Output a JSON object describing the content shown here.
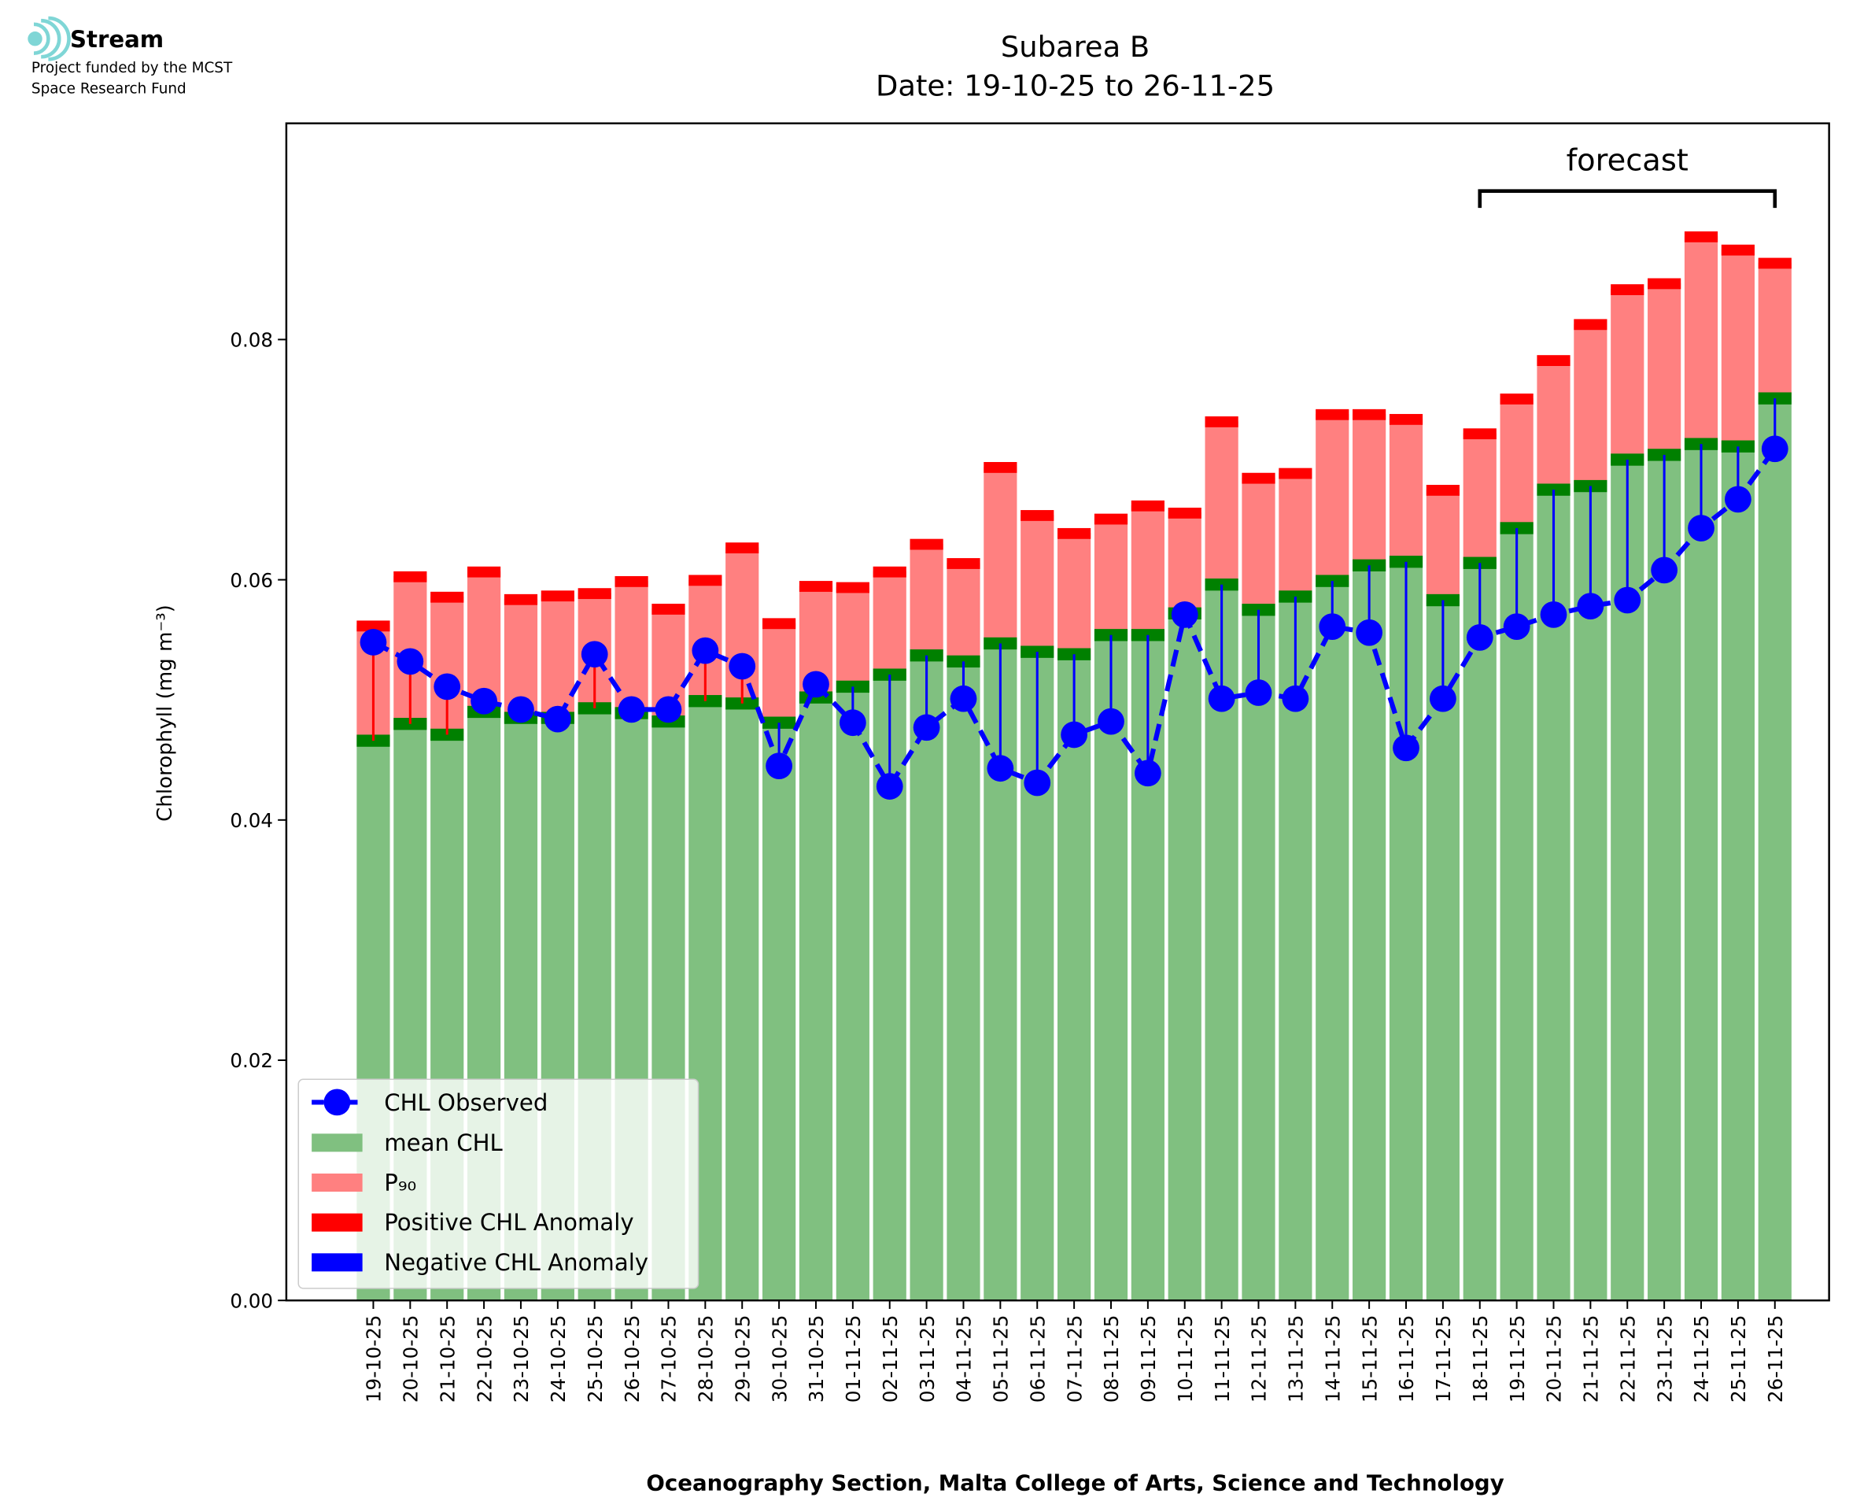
{
  "logo": {
    "name": "Stream",
    "line1": "Project funded by the MCST",
    "line2": "Space Research Fund"
  },
  "chart_data": {
    "type": "bar",
    "title": "Subarea B",
    "subtitle": "Date: 19-10-25 to 26-11-25",
    "xlabel": "Oceanography Section, Malta College of Arts, Science and Technology",
    "ylabel": "Chlorophyll (mg m⁻³)",
    "annotation": "forecast",
    "categories": [
      "19-10-25",
      "20-10-25",
      "21-10-25",
      "22-10-25",
      "23-10-25",
      "24-10-25",
      "25-10-25",
      "26-10-25",
      "27-10-25",
      "28-10-25",
      "29-10-25",
      "30-10-25",
      "31-10-25",
      "01-11-25",
      "02-11-25",
      "03-11-25",
      "04-11-25",
      "05-11-25",
      "06-11-25",
      "07-11-25",
      "08-11-25",
      "09-11-25",
      "10-11-25",
      "11-11-25",
      "12-11-25",
      "13-11-25",
      "14-11-25",
      "15-11-25",
      "16-11-25",
      "17-11-25",
      "18-11-25",
      "19-11-25",
      "20-11-25",
      "21-11-25",
      "22-11-25",
      "23-11-25",
      "24-11-25",
      "25-11-25",
      "26-11-25"
    ],
    "series": [
      {
        "name": "CHL Observed",
        "color": "#0000ff",
        "values": [
          0.0548,
          0.0532,
          0.0511,
          0.0499,
          0.0492,
          0.0484,
          0.0538,
          0.0492,
          0.0492,
          0.0541,
          0.0528,
          0.0445,
          0.0513,
          0.0481,
          0.0428,
          0.0477,
          0.0501,
          0.0443,
          0.0431,
          0.0471,
          0.0482,
          0.0439,
          0.0571,
          0.0501,
          0.0506,
          0.0501,
          0.0561,
          0.0556,
          0.046,
          0.0501,
          0.0552,
          0.0561,
          0.0571,
          0.0578,
          0.0583,
          0.0608,
          0.0643,
          0.0667,
          0.0709
        ]
      },
      {
        "name": "mean CHL",
        "color": "#80c080",
        "values": [
          0.0466,
          0.048,
          0.0471,
          0.049,
          0.0485,
          0.0485,
          0.0493,
          0.0489,
          0.0482,
          0.0499,
          0.0497,
          0.0481,
          0.0502,
          0.0511,
          0.0521,
          0.0537,
          0.0532,
          0.0547,
          0.054,
          0.0538,
          0.0554,
          0.0554,
          0.0572,
          0.0596,
          0.0575,
          0.0586,
          0.0599,
          0.0612,
          0.0615,
          0.0583,
          0.0614,
          0.0643,
          0.0675,
          0.0678,
          0.07,
          0.0704,
          0.0713,
          0.0711,
          0.0751
        ]
      },
      {
        "name": "P₉₀",
        "color": "#ff8080",
        "values": [
          0.0562,
          0.0603,
          0.0586,
          0.0607,
          0.0584,
          0.0587,
          0.0589,
          0.0599,
          0.0576,
          0.06,
          0.0627,
          0.0564,
          0.0595,
          0.0594,
          0.0607,
          0.063,
          0.0614,
          0.0694,
          0.0654,
          0.0639,
          0.0651,
          0.0662,
          0.0656,
          0.0732,
          0.0685,
          0.0689,
          0.0738,
          0.0738,
          0.0734,
          0.0675,
          0.0722,
          0.0751,
          0.0783,
          0.0813,
          0.0842,
          0.0847,
          0.0886,
          0.0875,
          0.0864
        ]
      }
    ],
    "anomalies": [
      {
        "name": "Positive CHL Anomaly",
        "color": "#ff0000"
      },
      {
        "name": "Negative CHL Anomaly",
        "color": "#0000ff"
      }
    ],
    "ylim": [
      0,
      0.098
    ],
    "yticks": [
      {
        "value": 0,
        "label": "0.00"
      },
      0.02,
      0.04,
      0.06,
      0.08
    ],
    "legend": "lower left"
  }
}
